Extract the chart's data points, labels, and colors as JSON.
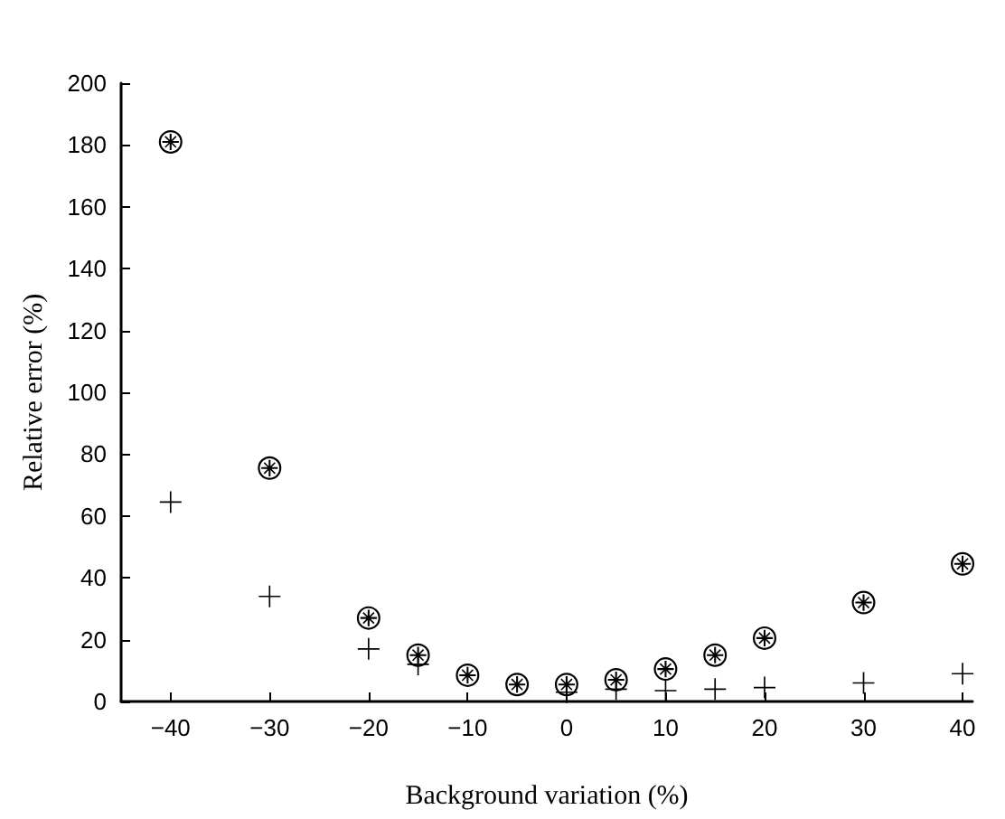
{
  "chart_data": {
    "type": "scatter",
    "xlabel": "Background variation (%)",
    "ylabel": "Relative error (%)",
    "x": [
      -40,
      -30,
      -20,
      -15,
      -10,
      -5,
      0,
      5,
      10,
      15,
      20,
      30,
      40
    ],
    "series": [
      {
        "color": "#000000",
        "marker": "circle",
        "values": [
          181,
          75.5,
          27,
          15,
          8.5,
          5.5,
          5.5,
          7,
          10.5,
          15,
          20.5,
          32,
          44.5
        ]
      },
      {
        "color": "#000000",
        "marker": "cross",
        "values": [
          64.5,
          34,
          17,
          12,
          null,
          null,
          3,
          4,
          3.5,
          4,
          4.5,
          6,
          9
        ]
      }
    ],
    "xlim": [
      -45,
      41
    ],
    "xticks": [
      -40,
      -30,
      -20,
      -10,
      0,
      10,
      20,
      30,
      40
    ],
    "ylim": [
      0,
      200
    ],
    "yticks": [
      0,
      20,
      40,
      60,
      80,
      100,
      120,
      140,
      160,
      180,
      200
    ]
  }
}
